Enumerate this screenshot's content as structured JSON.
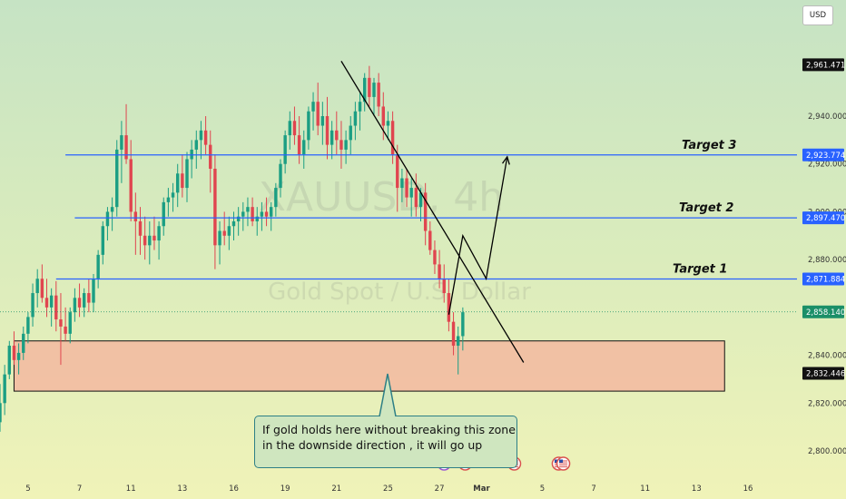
{
  "chart_data": {
    "type": "candlestick",
    "title": "XAUUSD, 4h",
    "subtitle": "Gold Spot / U.S. Dollar",
    "currency": "USD",
    "ylim": [
      2796,
      2972
    ],
    "y_ticks": [
      2800,
      2820,
      2840,
      2860,
      2880,
      2900,
      2920,
      2940,
      2960
    ],
    "y_tick_labels": [
      "2,800.000",
      "2,820.000",
      "2,840.000",
      "",
      "2,880.000",
      "2,900.000",
      "2,920.000",
      "2,940.000",
      ""
    ],
    "x_ticks": [
      {
        "label": "5",
        "x": 6
      },
      {
        "label": "7",
        "x": 17
      },
      {
        "label": "11",
        "x": 28
      },
      {
        "label": "13",
        "x": 39
      },
      {
        "label": "16",
        "x": 50
      },
      {
        "label": "19",
        "x": 61
      },
      {
        "label": "21",
        "x": 72
      },
      {
        "label": "25",
        "x": 83
      },
      {
        "label": "27",
        "x": 94
      },
      {
        "label": "Mar",
        "x": 103
      },
      {
        "label": "5",
        "x": 116
      },
      {
        "label": "7",
        "x": 127
      },
      {
        "label": "11",
        "x": 138
      },
      {
        "label": "13",
        "x": 149
      },
      {
        "label": "16",
        "x": 160
      }
    ],
    "xlim": [
      0,
      165
    ],
    "candles": [
      {
        "o": 2812,
        "h": 2828,
        "l": 2808,
        "c": 2820
      },
      {
        "o": 2820,
        "h": 2836,
        "l": 2815,
        "c": 2832
      },
      {
        "o": 2832,
        "h": 2846,
        "l": 2830,
        "c": 2844
      },
      {
        "o": 2844,
        "h": 2850,
        "l": 2836,
        "c": 2838
      },
      {
        "o": 2838,
        "h": 2845,
        "l": 2832,
        "c": 2841
      },
      {
        "o": 2841,
        "h": 2852,
        "l": 2838,
        "c": 2849
      },
      {
        "o": 2849,
        "h": 2858,
        "l": 2845,
        "c": 2856
      },
      {
        "o": 2856,
        "h": 2870,
        "l": 2852,
        "c": 2866
      },
      {
        "o": 2866,
        "h": 2876,
        "l": 2860,
        "c": 2872
      },
      {
        "o": 2872,
        "h": 2878,
        "l": 2862,
        "c": 2864
      },
      {
        "o": 2864,
        "h": 2872,
        "l": 2856,
        "c": 2860
      },
      {
        "o": 2860,
        "h": 2868,
        "l": 2852,
        "c": 2865
      },
      {
        "o": 2865,
        "h": 2871,
        "l": 2850,
        "c": 2855
      },
      {
        "o": 2855,
        "h": 2866,
        "l": 2836,
        "c": 2852
      },
      {
        "o": 2852,
        "h": 2860,
        "l": 2846,
        "c": 2849
      },
      {
        "o": 2849,
        "h": 2860,
        "l": 2845,
        "c": 2858
      },
      {
        "o": 2858,
        "h": 2868,
        "l": 2854,
        "c": 2864
      },
      {
        "o": 2864,
        "h": 2870,
        "l": 2856,
        "c": 2860
      },
      {
        "o": 2860,
        "h": 2868,
        "l": 2856,
        "c": 2866
      },
      {
        "o": 2866,
        "h": 2872,
        "l": 2858,
        "c": 2862
      },
      {
        "o": 2862,
        "h": 2874,
        "l": 2858,
        "c": 2872
      },
      {
        "o": 2872,
        "h": 2884,
        "l": 2868,
        "c": 2882
      },
      {
        "o": 2882,
        "h": 2896,
        "l": 2878,
        "c": 2894
      },
      {
        "o": 2894,
        "h": 2902,
        "l": 2888,
        "c": 2900
      },
      {
        "o": 2900,
        "h": 2906,
        "l": 2892,
        "c": 2902
      },
      {
        "o": 2902,
        "h": 2930,
        "l": 2898,
        "c": 2926
      },
      {
        "o": 2926,
        "h": 2938,
        "l": 2912,
        "c": 2932
      },
      {
        "o": 2932,
        "h": 2945,
        "l": 2920,
        "c": 2922
      },
      {
        "o": 2922,
        "h": 2930,
        "l": 2896,
        "c": 2900
      },
      {
        "o": 2900,
        "h": 2908,
        "l": 2882,
        "c": 2896
      },
      {
        "o": 2896,
        "h": 2902,
        "l": 2882,
        "c": 2890
      },
      {
        "o": 2890,
        "h": 2898,
        "l": 2880,
        "c": 2886
      },
      {
        "o": 2886,
        "h": 2896,
        "l": 2878,
        "c": 2890
      },
      {
        "o": 2890,
        "h": 2898,
        "l": 2884,
        "c": 2888
      },
      {
        "o": 2888,
        "h": 2896,
        "l": 2880,
        "c": 2894
      },
      {
        "o": 2894,
        "h": 2906,
        "l": 2890,
        "c": 2904
      },
      {
        "o": 2904,
        "h": 2910,
        "l": 2898,
        "c": 2906
      },
      {
        "o": 2906,
        "h": 2912,
        "l": 2900,
        "c": 2908
      },
      {
        "o": 2908,
        "h": 2920,
        "l": 2902,
        "c": 2916
      },
      {
        "o": 2916,
        "h": 2924,
        "l": 2906,
        "c": 2910
      },
      {
        "o": 2910,
        "h": 2925,
        "l": 2904,
        "c": 2922
      },
      {
        "o": 2922,
        "h": 2930,
        "l": 2914,
        "c": 2926
      },
      {
        "o": 2926,
        "h": 2934,
        "l": 2918,
        "c": 2930
      },
      {
        "o": 2930,
        "h": 2938,
        "l": 2922,
        "c": 2934
      },
      {
        "o": 2934,
        "h": 2940,
        "l": 2924,
        "c": 2928
      },
      {
        "o": 2928,
        "h": 2934,
        "l": 2908,
        "c": 2918
      },
      {
        "o": 2918,
        "h": 2924,
        "l": 2876,
        "c": 2886
      },
      {
        "o": 2886,
        "h": 2896,
        "l": 2878,
        "c": 2892
      },
      {
        "o": 2892,
        "h": 2900,
        "l": 2886,
        "c": 2890
      },
      {
        "o": 2890,
        "h": 2898,
        "l": 2884,
        "c": 2894
      },
      {
        "o": 2894,
        "h": 2900,
        "l": 2888,
        "c": 2896
      },
      {
        "o": 2896,
        "h": 2902,
        "l": 2890,
        "c": 2898
      },
      {
        "o": 2898,
        "h": 2904,
        "l": 2892,
        "c": 2900
      },
      {
        "o": 2900,
        "h": 2906,
        "l": 2894,
        "c": 2902
      },
      {
        "o": 2902,
        "h": 2906,
        "l": 2894,
        "c": 2896
      },
      {
        "o": 2896,
        "h": 2902,
        "l": 2890,
        "c": 2898
      },
      {
        "o": 2898,
        "h": 2904,
        "l": 2892,
        "c": 2900
      },
      {
        "o": 2900,
        "h": 2906,
        "l": 2894,
        "c": 2898
      },
      {
        "o": 2898,
        "h": 2904,
        "l": 2892,
        "c": 2902
      },
      {
        "o": 2902,
        "h": 2912,
        "l": 2898,
        "c": 2910
      },
      {
        "o": 2910,
        "h": 2922,
        "l": 2906,
        "c": 2920
      },
      {
        "o": 2920,
        "h": 2934,
        "l": 2916,
        "c": 2932
      },
      {
        "o": 2932,
        "h": 2942,
        "l": 2926,
        "c": 2938
      },
      {
        "o": 2938,
        "h": 2944,
        "l": 2928,
        "c": 2932
      },
      {
        "o": 2932,
        "h": 2940,
        "l": 2920,
        "c": 2924
      },
      {
        "o": 2924,
        "h": 2934,
        "l": 2918,
        "c": 2930
      },
      {
        "o": 2930,
        "h": 2944,
        "l": 2926,
        "c": 2942
      },
      {
        "o": 2942,
        "h": 2950,
        "l": 2934,
        "c": 2946
      },
      {
        "o": 2946,
        "h": 2954,
        "l": 2932,
        "c": 2936
      },
      {
        "o": 2936,
        "h": 2946,
        "l": 2928,
        "c": 2940
      },
      {
        "o": 2940,
        "h": 2948,
        "l": 2922,
        "c": 2928
      },
      {
        "o": 2928,
        "h": 2938,
        "l": 2922,
        "c": 2934
      },
      {
        "o": 2934,
        "h": 2942,
        "l": 2924,
        "c": 2930
      },
      {
        "o": 2930,
        "h": 2938,
        "l": 2918,
        "c": 2926
      },
      {
        "o": 2926,
        "h": 2934,
        "l": 2920,
        "c": 2930
      },
      {
        "o": 2930,
        "h": 2940,
        "l": 2924,
        "c": 2936
      },
      {
        "o": 2936,
        "h": 2946,
        "l": 2930,
        "c": 2942
      },
      {
        "o": 2942,
        "h": 2950,
        "l": 2934,
        "c": 2946
      },
      {
        "o": 2946,
        "h": 2958,
        "l": 2942,
        "c": 2956
      },
      {
        "o": 2956,
        "h": 2961,
        "l": 2944,
        "c": 2948
      },
      {
        "o": 2948,
        "h": 2956,
        "l": 2940,
        "c": 2954
      },
      {
        "o": 2954,
        "h": 2958,
        "l": 2940,
        "c": 2944
      },
      {
        "o": 2944,
        "h": 2950,
        "l": 2930,
        "c": 2936
      },
      {
        "o": 2936,
        "h": 2942,
        "l": 2930,
        "c": 2938
      },
      {
        "o": 2938,
        "h": 2942,
        "l": 2920,
        "c": 2924
      },
      {
        "o": 2924,
        "h": 2928,
        "l": 2900,
        "c": 2910
      },
      {
        "o": 2910,
        "h": 2918,
        "l": 2904,
        "c": 2914
      },
      {
        "o": 2914,
        "h": 2918,
        "l": 2902,
        "c": 2906
      },
      {
        "o": 2906,
        "h": 2914,
        "l": 2898,
        "c": 2910
      },
      {
        "o": 2910,
        "h": 2916,
        "l": 2898,
        "c": 2902
      },
      {
        "o": 2902,
        "h": 2910,
        "l": 2896,
        "c": 2908
      },
      {
        "o": 2908,
        "h": 2912,
        "l": 2886,
        "c": 2892
      },
      {
        "o": 2892,
        "h": 2896,
        "l": 2882,
        "c": 2884
      },
      {
        "o": 2884,
        "h": 2888,
        "l": 2874,
        "c": 2878
      },
      {
        "o": 2878,
        "h": 2884,
        "l": 2868,
        "c": 2872
      },
      {
        "o": 2872,
        "h": 2878,
        "l": 2862,
        "c": 2866
      },
      {
        "o": 2866,
        "h": 2872,
        "l": 2850,
        "c": 2854
      },
      {
        "o": 2854,
        "h": 2858,
        "l": 2840,
        "c": 2844
      },
      {
        "o": 2844,
        "h": 2852,
        "l": 2832,
        "c": 2848
      },
      {
        "o": 2848,
        "h": 2860,
        "l": 2842,
        "c": 2858
      }
    ],
    "horizontal_lines": [
      {
        "name": "Target 3",
        "price": 2923.774,
        "label": "2,923.774",
        "x_start": 14
      },
      {
        "name": "Target 2",
        "price": 2897.47,
        "label": "2,897.470",
        "x_start": 16
      },
      {
        "name": "Target 1",
        "price": 2871.884,
        "label": "2,871.884",
        "x_start": 12
      }
    ],
    "current_price": {
      "price": 2858.14,
      "label": "2,858.140"
    },
    "high_marker": {
      "price": 2961.471,
      "label": "2,961.471"
    },
    "zone_marker": {
      "price": 2832.446,
      "label": "2,832.446"
    },
    "support_zone": {
      "top": 2846,
      "bottom": 2825,
      "x_start": 3,
      "x_end": 155
    },
    "trendline": {
      "x1": 73,
      "y1": 2963,
      "x2": 112,
      "y2": 2837
    },
    "projection": [
      {
        "x": 96,
        "y": 2857
      },
      {
        "x": 99,
        "y": 2890
      },
      {
        "x": 104,
        "y": 2872
      },
      {
        "x": 108.5,
        "y": 2923
      }
    ],
    "event_icons": [
      {
        "icon": "lightning-icon",
        "x": 95
      },
      {
        "icon": "us-flag-icon",
        "x": 99.5
      },
      {
        "icon": "us-flag-icon",
        "x": 110
      },
      {
        "icon": "us-flag-icon",
        "x": 119.5
      },
      {
        "icon": "us-flag-icon",
        "x": 120.5
      }
    ]
  },
  "annotation": {
    "line1": "If gold holds here without breaking this zone",
    "line2": "in the downside direction , it will go up"
  },
  "colors": {
    "up": "#1b9e83",
    "down": "#e0454f",
    "target_line": "#2962ff",
    "zone_fill": "#f3b9a0",
    "trend_line": "#000000",
    "current_price": "#1b8f68"
  }
}
